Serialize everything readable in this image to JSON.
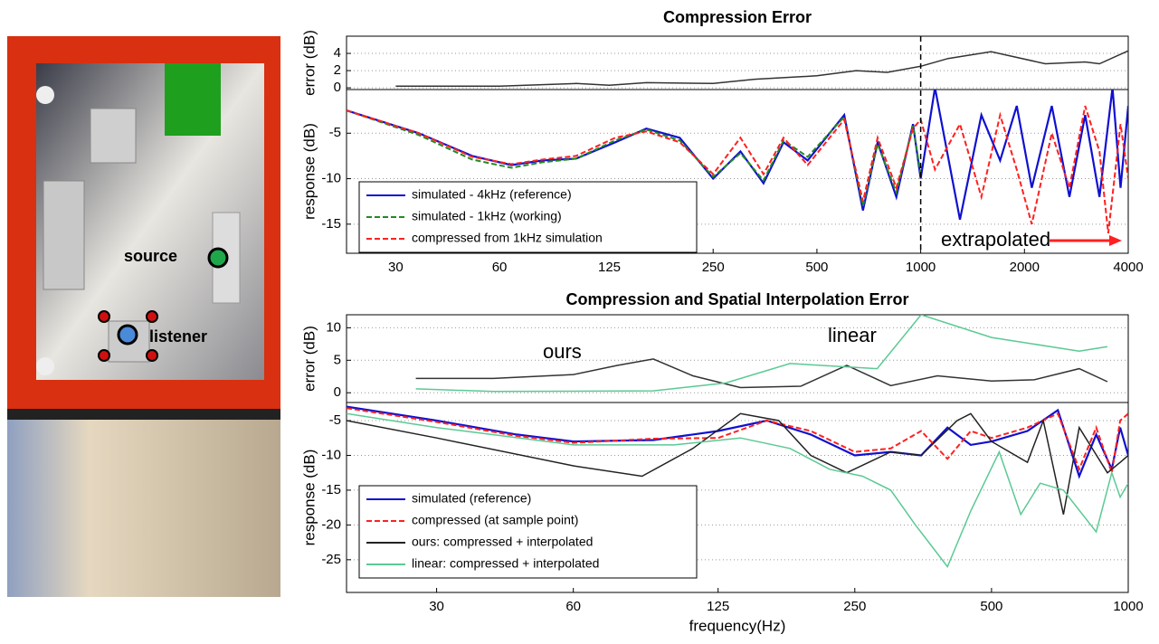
{
  "scene": {
    "source_label": "source",
    "listener_label": "listener"
  },
  "chart_data": [
    {
      "type": "line",
      "title": "Compression Error",
      "xscale": "log",
      "xlim": [
        21.6,
        4000
      ],
      "xticks": [
        30,
        60,
        125,
        250,
        500,
        1000,
        2000,
        4000
      ],
      "vline": 1000,
      "legend": "lower left",
      "annotations": [
        {
          "text": "extrapolated",
          "color": "#ff2020"
        }
      ],
      "error": {
        "ylabel": "error (dB)",
        "ylim": [
          -0.2,
          6
        ],
        "yticks": [
          0,
          2,
          4
        ],
        "grid": true,
        "series": [
          {
            "name": null,
            "color": "#333333",
            "dash": false,
            "x": [
              30,
              60,
              100,
              125,
              160,
              250,
              330,
              500,
              650,
              800,
              1000,
              1200,
              1600,
              2300,
              3000,
              3300,
              4000
            ],
            "values": [
              0.2,
              0.2,
              0.5,
              0.3,
              0.6,
              0.5,
              1.0,
              1.4,
              2.0,
              1.8,
              2.5,
              3.4,
              4.2,
              2.8,
              3.0,
              2.8,
              4.3
            ]
          }
        ]
      },
      "response": {
        "ylabel": "response (dB)",
        "ylim": [
          -18.2,
          -0.2
        ],
        "yticks": [
          -5,
          -10,
          -15
        ],
        "grid": true,
        "series": [
          {
            "name": "simulated - 4kHz (reference)",
            "color": "#1010d0",
            "dash": false,
            "x": [
              21.6,
              35,
              50,
              65,
              80,
              100,
              130,
              160,
              200,
              250,
              300,
              350,
              400,
              470,
              600,
              680,
              750,
              850,
              950,
              1000,
              1100,
              1300,
              1500,
              1700,
              1900,
              2100,
              2400,
              2700,
              3000,
              3300,
              3600,
              3800,
              4000
            ],
            "values": [
              -2.5,
              -5,
              -7.5,
              -8.5,
              -8,
              -7.8,
              -6,
              -4.5,
              -5.5,
              -10,
              -7,
              -10.5,
              -6,
              -8,
              -3,
              -13.5,
              -6,
              -12,
              -4,
              -10,
              0,
              -14.5,
              -3,
              -8,
              -2,
              -11,
              -2,
              -12,
              -3,
              -12,
              0,
              -11,
              -2
            ]
          },
          {
            "name": "simulated - 1kHz (working)",
            "color": "#228b22",
            "dash": true,
            "x": [
              21.6,
              35,
              50,
              65,
              80,
              100,
              130,
              160,
              200,
              250,
              300,
              350,
              400,
              470,
              600,
              680,
              750,
              850,
              950,
              1000
            ],
            "values": [
              -2.5,
              -5.2,
              -7.9,
              -8.8,
              -8.2,
              -7.8,
              -5.8,
              -4.6,
              -5.8,
              -9.8,
              -7.2,
              -10.2,
              -5.8,
              -7.6,
              -3.2,
              -13,
              -6.2,
              -11.5,
              -4.2,
              -9.5
            ]
          },
          {
            "name": "compressed from 1kHz simulation",
            "color": "#ff2020",
            "dash": true,
            "x": [
              21.6,
              35,
              50,
              65,
              80,
              100,
              130,
              160,
              200,
              250,
              300,
              350,
              400,
              470,
              600,
              680,
              750,
              850,
              950,
              1000,
              1100,
              1300,
              1500,
              1700,
              1900,
              2100,
              2400,
              2700,
              3000,
              3300,
              3500,
              3800,
              4000
            ],
            "values": [
              -2.5,
              -5,
              -7.6,
              -8.4,
              -7.9,
              -7.5,
              -5.5,
              -4.8,
              -6,
              -9.5,
              -5.5,
              -9.5,
              -5.5,
              -8.5,
              -3.5,
              -12.5,
              -5.5,
              -11,
              -4.5,
              -3.5,
              -9,
              -4,
              -12,
              -3,
              -9,
              -15,
              -5,
              -11,
              -2,
              -7,
              -16,
              -4,
              -10
            ]
          }
        ]
      }
    },
    {
      "type": "line",
      "title": "Compression and Spatial Interpolation Error",
      "xscale": "log",
      "xlim": [
        19,
        1000
      ],
      "xticks": [
        30,
        60,
        125,
        250,
        500,
        1000
      ],
      "xlabel": "frequency(Hz)",
      "legend": "lower left",
      "annotations": [
        {
          "text": "ours",
          "color": "#000000"
        },
        {
          "text": "linear",
          "color": "#3cb878"
        }
      ],
      "error": {
        "ylabel": "error (dB)",
        "ylim": [
          -1.5,
          12
        ],
        "yticks": [
          0,
          5,
          10
        ],
        "grid": true,
        "series": [
          {
            "name": null,
            "color": "#333333",
            "dash": false,
            "x": [
              27,
              40,
              60,
              75,
              90,
              110,
              140,
              190,
              240,
              300,
              380,
              500,
              620,
              780,
              900
            ],
            "values": [
              2.2,
              2.2,
              2.8,
              4.2,
              5.2,
              2.6,
              0.8,
              1.0,
              4.2,
              1.1,
              2.6,
              1.8,
              2.0,
              3.7,
              1.7
            ]
          },
          {
            "name": null,
            "color": "#5bc994",
            "dash": false,
            "x": [
              27,
              40,
              90,
              130,
              180,
              280,
              350,
              500,
              780,
              900
            ],
            "values": [
              0.6,
              0.2,
              0.3,
              1.5,
              4.5,
              3.7,
              12,
              8.5,
              6.4,
              7.1
            ]
          }
        ]
      },
      "response": {
        "ylabel": "response (dB)",
        "ylim": [
          -29.7,
          -2.4
        ],
        "yticks": [
          -5,
          -10,
          -15,
          -20,
          -25
        ],
        "grid": true,
        "series": [
          {
            "name": "simulated (reference)",
            "color": "#1010d0",
            "dash": false,
            "x": [
              19,
              30,
              45,
              60,
              90,
              125,
              160,
              200,
              250,
              300,
              350,
              400,
              450,
              500,
              600,
              700,
              780,
              850,
              920,
              960,
              1000
            ],
            "values": [
              -3,
              -5,
              -7,
              -8,
              -7.8,
              -6.5,
              -5,
              -7,
              -10,
              -9.5,
              -10,
              -6,
              -8.5,
              -8,
              -6.5,
              -3.5,
              -13,
              -7,
              -12,
              -6,
              -10
            ]
          },
          {
            "name": "compressed (at sample point)",
            "color": "#ff2020",
            "dash": true,
            "x": [
              19,
              30,
              45,
              60,
              90,
              125,
              160,
              200,
              250,
              300,
              350,
              400,
              450,
              500,
              600,
              700,
              780,
              850,
              920,
              960,
              1000
            ],
            "values": [
              -3.2,
              -5.2,
              -7.2,
              -8.2,
              -7.6,
              -7.5,
              -5,
              -6.5,
              -9.5,
              -9,
              -6.5,
              -10.5,
              -6.5,
              -7.5,
              -6,
              -4,
              -12,
              -6,
              -12.5,
              -5,
              -4
            ]
          },
          {
            "name": "ours: compressed + interpolated",
            "color": "#222222",
            "dash": false,
            "x": [
              19,
              30,
              60,
              85,
              110,
              140,
              170,
              200,
              240,
              300,
              350,
              420,
              450,
              500,
              600,
              650,
              720,
              780,
              900,
              960,
              1000
            ],
            "values": [
              -5,
              -7.5,
              -11.5,
              -13,
              -9,
              -4,
              -5,
              -10,
              -12.5,
              -9.5,
              -10,
              -5,
              -4,
              -8,
              -11,
              -5,
              -18.5,
              -6,
              -12.5,
              -11,
              -10
            ]
          },
          {
            "name": "linear: compressed + interpolated",
            "color": "#5bc994",
            "dash": false,
            "x": [
              19,
              30,
              60,
              100,
              140,
              180,
              220,
              260,
              300,
              340,
              400,
              450,
              520,
              580,
              640,
              720,
              850,
              920,
              960,
              1000
            ],
            "values": [
              -4,
              -6,
              -8.5,
              -8.5,
              -7.5,
              -9,
              -12,
              -13,
              -15,
              -20,
              -26,
              -18,
              -9.5,
              -18.5,
              -14,
              -15,
              -21,
              -12.5,
              -16,
              -14
            ]
          }
        ]
      }
    }
  ]
}
